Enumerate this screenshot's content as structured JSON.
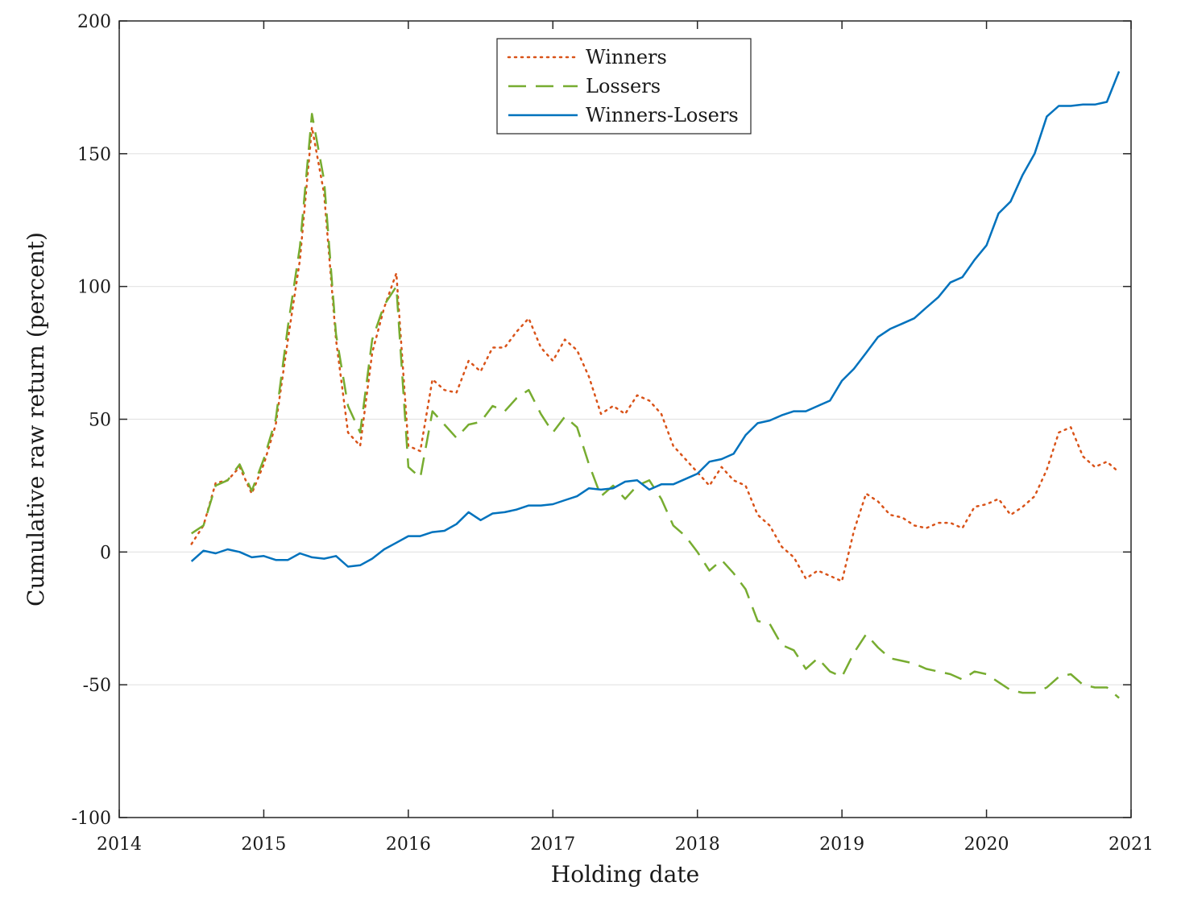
{
  "chart_data": {
    "type": "line",
    "xlabel": "Holding date",
    "ylabel": "Cumulative raw return (percent)",
    "xlim": [
      2014,
      2021
    ],
    "ylim": [
      -100,
      200
    ],
    "x_ticks": [
      2014,
      2015,
      2016,
      2017,
      2018,
      2019,
      2020,
      2021
    ],
    "y_ticks": [
      -100,
      -50,
      0,
      50,
      100,
      150,
      200
    ],
    "grid": "horizontal",
    "legend_position": "top-center",
    "series": [
      {
        "name": "Winners",
        "color": "#D95319",
        "style": "dotted",
        "x": [
          2014.5,
          2014.583,
          2014.667,
          2014.75,
          2014.833,
          2014.917,
          2015.0,
          2015.083,
          2015.167,
          2015.25,
          2015.333,
          2015.417,
          2015.5,
          2015.583,
          2015.667,
          2015.75,
          2015.833,
          2015.917,
          2016.0,
          2016.083,
          2016.167,
          2016.25,
          2016.333,
          2016.417,
          2016.5,
          2016.583,
          2016.667,
          2016.75,
          2016.833,
          2016.917,
          2017.0,
          2017.083,
          2017.167,
          2017.25,
          2017.333,
          2017.417,
          2017.5,
          2017.583,
          2017.667,
          2017.75,
          2017.833,
          2017.917,
          2018.0,
          2018.083,
          2018.167,
          2018.25,
          2018.333,
          2018.417,
          2018.5,
          2018.583,
          2018.667,
          2018.75,
          2018.833,
          2018.917,
          2019.0,
          2019.083,
          2019.167,
          2019.25,
          2019.333,
          2019.417,
          2019.5,
          2019.583,
          2019.667,
          2019.75,
          2019.833,
          2019.917,
          2020.0,
          2020.083,
          2020.167,
          2020.25,
          2020.333,
          2020.417,
          2020.5,
          2020.583,
          2020.667,
          2020.75,
          2020.833,
          2020.917
        ],
        "values": [
          3,
          10,
          26,
          27,
          32,
          22,
          33,
          48,
          80,
          110,
          160,
          135,
          80,
          45,
          40,
          75,
          92,
          105,
          40,
          38,
          65,
          61,
          60,
          72,
          68,
          77,
          77,
          83,
          88,
          77,
          72,
          80,
          76,
          66,
          52,
          55,
          52,
          59,
          57,
          52,
          40,
          35,
          30,
          25,
          32,
          27,
          25,
          14,
          10,
          2,
          -2,
          -10,
          -7,
          -9,
          -11,
          8,
          22,
          19,
          14,
          13,
          10,
          9,
          11,
          11,
          9,
          17,
          18,
          20,
          14,
          17,
          21,
          31,
          45,
          47,
          36,
          32,
          34,
          30
        ]
      },
      {
        "name": "Lossers",
        "color": "#77AC30",
        "style": "dashed",
        "x": [
          2014.5,
          2014.583,
          2014.667,
          2014.75,
          2014.833,
          2014.917,
          2015.0,
          2015.083,
          2015.167,
          2015.25,
          2015.333,
          2015.417,
          2015.5,
          2015.583,
          2015.667,
          2015.75,
          2015.833,
          2015.917,
          2016.0,
          2016.083,
          2016.167,
          2016.25,
          2016.333,
          2016.417,
          2016.5,
          2016.583,
          2016.667,
          2016.75,
          2016.833,
          2016.917,
          2017.0,
          2017.083,
          2017.167,
          2017.25,
          2017.333,
          2017.417,
          2017.5,
          2017.583,
          2017.667,
          2017.75,
          2017.833,
          2017.917,
          2018.0,
          2018.083,
          2018.167,
          2018.25,
          2018.333,
          2018.417,
          2018.5,
          2018.583,
          2018.667,
          2018.75,
          2018.833,
          2018.917,
          2019.0,
          2019.083,
          2019.167,
          2019.25,
          2019.333,
          2019.417,
          2019.5,
          2019.583,
          2019.667,
          2019.75,
          2019.833,
          2019.917,
          2020.0,
          2020.083,
          2020.167,
          2020.25,
          2020.333,
          2020.417,
          2020.5,
          2020.583,
          2020.667,
          2020.75,
          2020.833,
          2020.917
        ],
        "values": [
          7,
          10,
          25,
          27,
          33,
          23,
          35,
          50,
          85,
          115,
          165,
          140,
          82,
          55,
          45,
          80,
          93,
          100,
          32,
          28,
          53,
          48,
          43,
          48,
          49,
          55,
          53,
          58,
          61,
          52,
          45,
          51,
          47,
          33,
          21,
          25,
          20,
          25,
          27,
          20,
          10,
          6,
          0,
          -7,
          -3,
          -8,
          -14,
          -26,
          -27,
          -35,
          -37,
          -44,
          -40,
          -45,
          -47,
          -38,
          -31,
          -36,
          -40,
          -41,
          -42,
          -44,
          -45,
          -46,
          -48,
          -45,
          -46,
          -49,
          -52,
          -53,
          -53,
          -51,
          -47,
          -46,
          -50,
          -51,
          -51,
          -55
        ]
      },
      {
        "name": "Winners-Losers",
        "color": "#0072BD",
        "style": "solid",
        "x": [
          2014.5,
          2014.583,
          2014.667,
          2014.75,
          2014.833,
          2014.917,
          2015.0,
          2015.083,
          2015.167,
          2015.25,
          2015.333,
          2015.417,
          2015.5,
          2015.583,
          2015.667,
          2015.75,
          2015.833,
          2015.917,
          2016.0,
          2016.083,
          2016.167,
          2016.25,
          2016.333,
          2016.417,
          2016.5,
          2016.583,
          2016.667,
          2016.75,
          2016.833,
          2016.917,
          2017.0,
          2017.083,
          2017.167,
          2017.25,
          2017.333,
          2017.417,
          2017.5,
          2017.583,
          2017.667,
          2017.75,
          2017.833,
          2017.917,
          2018.0,
          2018.083,
          2018.167,
          2018.25,
          2018.333,
          2018.417,
          2018.5,
          2018.583,
          2018.667,
          2018.75,
          2018.833,
          2018.917,
          2019.0,
          2019.083,
          2019.167,
          2019.25,
          2019.333,
          2019.417,
          2019.5,
          2019.583,
          2019.667,
          2019.75,
          2019.833,
          2019.917,
          2020.0,
          2020.083,
          2020.167,
          2020.25,
          2020.333,
          2020.417,
          2020.5,
          2020.583,
          2020.667,
          2020.75,
          2020.833,
          2020.917
        ],
        "values": [
          -3.5,
          0.5,
          -0.5,
          1,
          0,
          -2,
          -1.5,
          -3,
          -3,
          -0.5,
          -2,
          -2.5,
          -1.5,
          -5.5,
          -5,
          -2.5,
          1,
          3.5,
          6,
          6,
          7.5,
          8,
          10.5,
          15,
          12,
          14.5,
          15,
          16,
          17.5,
          17.5,
          18,
          19.5,
          21,
          24,
          23.5,
          24,
          26.5,
          27,
          23.5,
          25.5,
          25.5,
          27.5,
          29.5,
          34,
          35,
          37,
          44,
          48.5,
          49.5,
          51.5,
          53,
          53,
          55,
          57,
          64.5,
          69,
          75,
          81,
          84,
          86,
          88,
          92,
          96,
          101.5,
          103.5,
          110,
          115.5,
          127.5,
          132,
          142,
          150,
          164,
          168,
          168,
          168.5,
          168.5,
          169.5,
          181
        ]
      }
    ]
  }
}
